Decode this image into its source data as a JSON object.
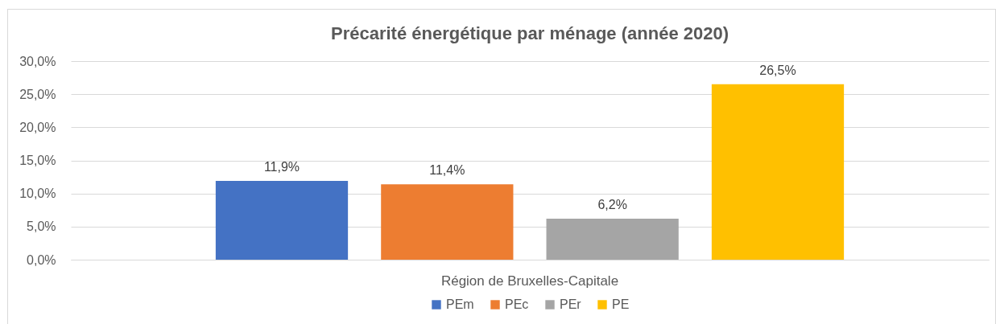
{
  "chart_data": {
    "type": "bar",
    "title": "Précarité énergétique par ménage (année 2020)",
    "categories": [
      "Région de Bruxelles-Capitale"
    ],
    "series": [
      {
        "name": "PEm",
        "color": "#4472c4",
        "values": [
          11.9
        ],
        "value_labels": [
          "11,9%"
        ]
      },
      {
        "name": "PEc",
        "color": "#ed7d31",
        "values": [
          11.4
        ],
        "value_labels": [
          "11,4%"
        ]
      },
      {
        "name": "PEr",
        "color": "#a5a5a5",
        "values": [
          6.2
        ],
        "value_labels": [
          "6,2%"
        ]
      },
      {
        "name": "PE",
        "color": "#ffc000",
        "values": [
          26.5
        ],
        "value_labels": [
          "26,5%"
        ]
      }
    ],
    "ylim": [
      0,
      30
    ],
    "yticks": [
      {
        "value": 0,
        "label": "0,0%"
      },
      {
        "value": 5,
        "label": "5,0%"
      },
      {
        "value": 10,
        "label": "10,0%"
      },
      {
        "value": 15,
        "label": "15,0%"
      },
      {
        "value": 20,
        "label": "20,0%"
      },
      {
        "value": 25,
        "label": "25,0%"
      },
      {
        "value": 30,
        "label": "30,0%"
      }
    ],
    "grid": "y",
    "legend": "bottom"
  }
}
